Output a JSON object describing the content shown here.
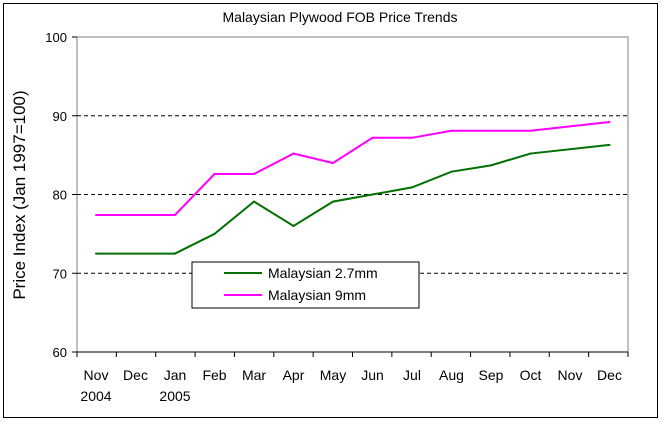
{
  "chart_data": {
    "type": "line",
    "title": "Malaysian Plywood FOB Price Trends",
    "ylabel": "Price Index (Jan 1997=100)",
    "xlabel": "",
    "ylim": [
      60,
      100
    ],
    "yticks": [
      60,
      70,
      80,
      90,
      100
    ],
    "categories": [
      "Nov 2004",
      "Dec 2004",
      "Jan 2005",
      "Feb 2005",
      "Mar 2005",
      "Apr 2005",
      "May 2005",
      "Jun 2005",
      "Jul 2005",
      "Aug 2005",
      "Sep 2005",
      "Oct 2005",
      "Nov 2005",
      "Dec 2005"
    ],
    "tick_labels": [
      "Nov",
      "Dec",
      "Jan",
      "Feb",
      "Mar",
      "Apr",
      "May",
      "Jun",
      "Jul",
      "Aug",
      "Sep",
      "Oct",
      "Nov",
      "Dec"
    ],
    "tick_sublabels": [
      "2004",
      "",
      "2005",
      "",
      "",
      "",
      "",
      "",
      "",
      "",
      "",
      "",
      "",
      ""
    ],
    "grid": "horizontal dashed at 70, 80, 90",
    "legend_placement": "lower-middle",
    "series": [
      {
        "name": "Malaysian 2.7mm",
        "color": "#007000",
        "points": [
          {
            "x": "Nov 2004",
            "y": 72.5
          },
          {
            "x": "Jan 2005",
            "y": 72.5
          },
          {
            "x": "Feb 2005",
            "y": 75.0
          },
          {
            "x": "Mar 2005",
            "y": 79.1
          },
          {
            "x": "Apr 2005",
            "y": 76.0
          },
          {
            "x": "May 2005",
            "y": 79.1
          },
          {
            "x": "Jun 2005",
            "y": 80.0
          },
          {
            "x": "Jul 2005",
            "y": 80.9
          },
          {
            "x": "Aug 2005",
            "y": 82.9
          },
          {
            "x": "Sep 2005",
            "y": 83.7
          },
          {
            "x": "Oct 2005",
            "y": 85.2
          },
          {
            "x": "Dec 2005",
            "y": 86.3
          }
        ]
      },
      {
        "name": "Malaysian 9mm",
        "color": "#ff00ff",
        "points": [
          {
            "x": "Nov 2004",
            "y": 77.4
          },
          {
            "x": "Jan 2005",
            "y": 77.4
          },
          {
            "x": "Feb 2005",
            "y": 82.6
          },
          {
            "x": "Mar 2005",
            "y": 82.6
          },
          {
            "x": "Apr 2005",
            "y": 85.2
          },
          {
            "x": "May 2005",
            "y": 84.0
          },
          {
            "x": "Jun 2005",
            "y": 87.2
          },
          {
            "x": "Jul 2005",
            "y": 87.2
          },
          {
            "x": "Aug 2005",
            "y": 88.1
          },
          {
            "x": "Sep 2005",
            "y": 88.1
          },
          {
            "x": "Oct 2005",
            "y": 88.1
          },
          {
            "x": "Dec 2005",
            "y": 89.2
          }
        ]
      }
    ]
  }
}
